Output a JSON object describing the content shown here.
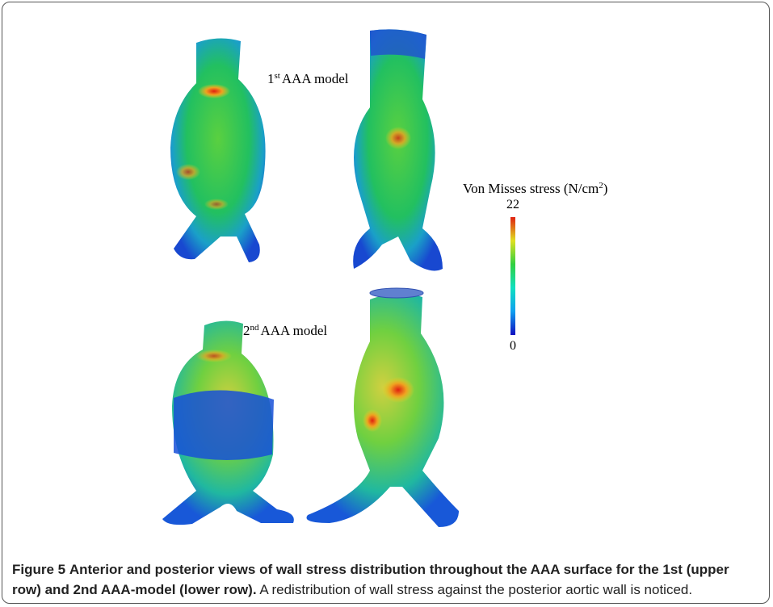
{
  "figure": {
    "labels": [
      {
        "number": "1",
        "suffix": "st",
        "text": "AAA model"
      },
      {
        "number": "2",
        "suffix": "nd",
        "text": "AAA model"
      }
    ],
    "colorbar": {
      "title": "Von Misses stress (N/cm",
      "title_sup": "2",
      "title_end": ")",
      "max": 22,
      "min": 0
    },
    "caption": {
      "label": "Figure 5",
      "title": "Anterior and posterior views of wall stress distribution throughout the AAA surface for the 1st (upper row) and 2nd AAA-model (lower row).",
      "text": "A redistribution of wall stress against the posterior aortic wall is noticed."
    }
  }
}
